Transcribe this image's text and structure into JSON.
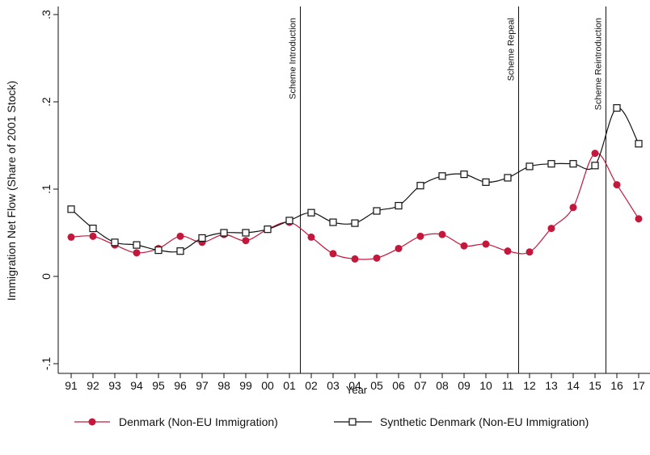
{
  "chart_data": {
    "type": "line",
    "title": "",
    "xlabel": "Year",
    "ylabel": "Immigration Net Flow (Share of 2001 Stock)",
    "categories": [
      "91",
      "92",
      "93",
      "94",
      "95",
      "96",
      "97",
      "98",
      "99",
      "00",
      "01",
      "02",
      "03",
      "04",
      "05",
      "06",
      "07",
      "08",
      "09",
      "10",
      "11",
      "12",
      "13",
      "14",
      "15",
      "16",
      "17"
    ],
    "yticks": [
      -0.1,
      0,
      0.1,
      0.2,
      0.3
    ],
    "ytick_labels": [
      "-.1",
      "0",
      ".1",
      ".2",
      ".3"
    ],
    "ylim": [
      -0.12,
      0.31
    ],
    "grid": false,
    "legend_position": "bottom",
    "series": [
      {
        "name": "Denmark (Non-EU Immigration)",
        "color": "#c4173c",
        "marker": "filled-circle",
        "values": [
          0.045,
          0.046,
          0.036,
          0.027,
          0.032,
          0.046,
          0.039,
          0.048,
          0.041,
          0.054,
          0.062,
          0.045,
          0.026,
          0.02,
          0.021,
          0.032,
          0.046,
          0.048,
          0.035,
          0.037,
          0.029,
          0.028,
          0.055,
          0.079,
          0.141,
          0.105,
          0.066
        ]
      },
      {
        "name": "Synthetic Denmark (Non-EU Immigration)",
        "color": "#111111",
        "marker": "hollow-square",
        "values": [
          0.077,
          0.055,
          0.039,
          0.036,
          0.03,
          0.029,
          0.044,
          0.05,
          0.05,
          0.054,
          0.064,
          0.073,
          0.062,
          0.061,
          0.075,
          0.081,
          0.104,
          0.115,
          0.117,
          0.108,
          0.113,
          0.126,
          0.129,
          0.129,
          0.127,
          0.193,
          0.152
        ]
      }
    ],
    "annotations": [
      {
        "label": "Scheme Introduction",
        "x_between": [
          "01",
          "02"
        ]
      },
      {
        "label": "Scheme Repeal",
        "x_between": [
          "11",
          "12"
        ]
      },
      {
        "label": "Scheme Reintroduction",
        "x_between": [
          "15",
          "16"
        ]
      }
    ]
  }
}
